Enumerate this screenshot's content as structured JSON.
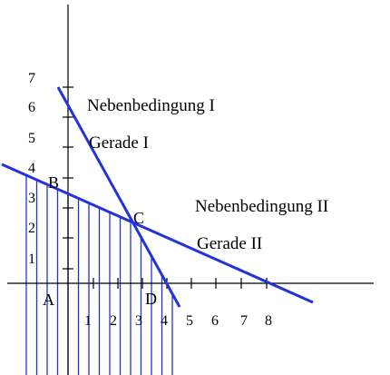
{
  "labels": {
    "nebenbedingung_1": "Nebenbedingung I",
    "gerade_1": "Gerade I",
    "nebenbedingung_2": "Nebenbedingung II",
    "gerade_2": "Gerade II"
  },
  "points": {
    "a": "A",
    "b": "B",
    "c": "C",
    "d": "D"
  },
  "x_ticks": [
    "1",
    "2",
    "3",
    "4",
    "5",
    "6",
    "7",
    "8"
  ],
  "y_ticks": [
    "1",
    "2",
    "3",
    "4",
    "5",
    "6",
    "7"
  ],
  "colors": {
    "line": "#2233dd",
    "hatch": "#2233dd",
    "axis": "#000000"
  }
}
